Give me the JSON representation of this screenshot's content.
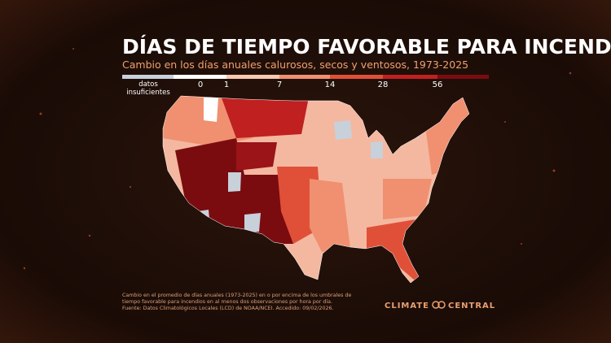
{
  "title": "DÍAS DE TIEMPO FAVORABLE PARA INCENDIOS",
  "subtitle": "Cambio en los días anuales calurosos, secos y ventosos, 1973-2025",
  "legend": {
    "no_data": [
      "datos",
      "insuficientes"
    ],
    "ticks": [
      "0",
      "1",
      "7",
      "14",
      "28",
      "56"
    ]
  },
  "footnote": [
    "Cambio en el promedio de días anuales (1973-2025) en o por encima de los umbrales de",
    "tiempo favorable para incendios en al menos dos observaciones por hora por día.",
    "Fuente: Datos Climatológicos Locales (LCD) de NOAA/NCEI. Accedido: 09/02/2026."
  ],
  "logo": {
    "left": "CLIMATE",
    "right": "CENTRAL"
  }
}
